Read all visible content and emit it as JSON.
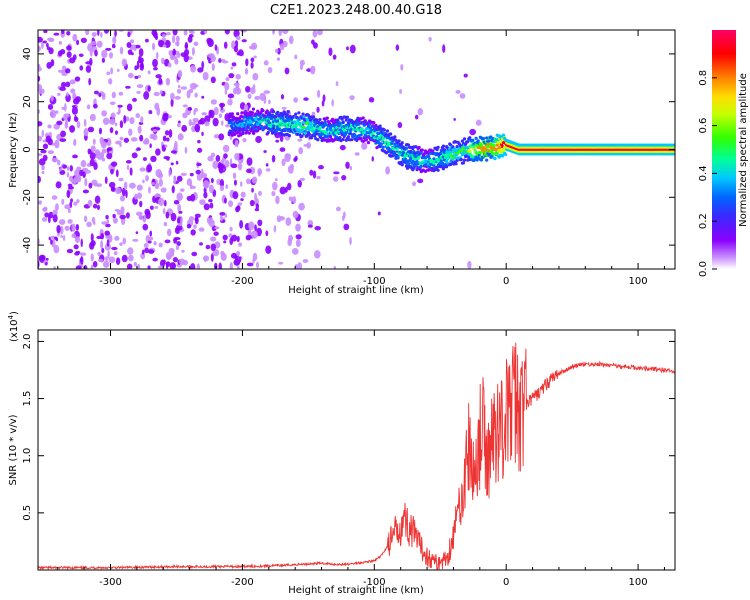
{
  "title": "C2E1.2023.248.00.40.G18",
  "chart_data": [
    {
      "type": "heatmap",
      "xlabel": "Height of straight line (km)",
      "ylabel": "Frequency (Hz)",
      "xlim": [
        -355,
        128
      ],
      "ylim": [
        -50,
        50
      ],
      "xticks": [
        "-300",
        "-200",
        "-100",
        "0",
        "100"
      ],
      "xtick_values": [
        -300,
        -200,
        -100,
        0,
        100
      ],
      "yticks": [
        "-40",
        "-20",
        "0",
        "20",
        "40"
      ],
      "ytick_values": [
        -40,
        -20,
        0,
        20,
        40
      ],
      "colorbar": {
        "label": "Normalized spectral amplitude",
        "range": [
          0,
          1
        ],
        "ticks": [
          "0.0",
          "0.2",
          "0.4",
          "0.6",
          "0.8"
        ],
        "tick_values": [
          0.0,
          0.2,
          0.4,
          0.6,
          0.8
        ],
        "colors": [
          "#ffffff",
          "#c88cff",
          "#8a00ff",
          "#3c28ff",
          "#0064ff",
          "#00c8ff",
          "#00ff96",
          "#32ff00",
          "#c8ff00",
          "#ffdc00",
          "#ff8200",
          "#ff0000",
          "#ff0064"
        ]
      },
      "ridge": {
        "x": [
          -210,
          -190,
          -170,
          -150,
          -135,
          -120,
          -105,
          -90,
          -75,
          -60,
          -50,
          -40,
          -30,
          -20,
          -10,
          0,
          10,
          50,
          128
        ],
        "y": [
          10,
          12,
          11,
          10,
          8,
          9,
          8,
          3,
          -3,
          -5,
          -4,
          -2,
          0,
          0,
          1,
          2,
          0,
          0,
          0
        ],
        "amplitude": [
          0.35,
          0.45,
          0.5,
          0.55,
          0.45,
          0.5,
          0.45,
          0.5,
          0.5,
          0.45,
          0.5,
          0.55,
          0.6,
          0.8,
          0.85,
          0.9,
          0.9,
          0.95,
          0.95
        ]
      }
    },
    {
      "type": "line",
      "xlabel": "Height of straight line (km)",
      "ylabel": "SNR (10 * v/v)",
      "yscale_note": "(x10",
      "yscale_exp": "4",
      "yscale_close": ")",
      "xlim": [
        -355,
        128
      ],
      "ylim": [
        0,
        2.1
      ],
      "xticks": [
        "-300",
        "-200",
        "-100",
        "0",
        "100"
      ],
      "xtick_values": [
        -300,
        -200,
        -100,
        0,
        100
      ],
      "yticks": [
        "0.5",
        "1.0",
        "1.5",
        "2.0"
      ],
      "ytick_values": [
        0.5,
        1.0,
        1.5,
        2.0
      ],
      "color": "#ee3333",
      "series": [
        {
          "x": [
            -355,
            -300,
            -250,
            -200,
            -170,
            -140,
            -130,
            -120,
            -100,
            -95,
            -85,
            -78,
            -72,
            -65,
            -58,
            -52,
            -45,
            -40,
            -35,
            -30,
            -28,
            -25,
            -22,
            -18,
            -15,
            -12,
            -8,
            -5,
            -2,
            0,
            3,
            5,
            8,
            10,
            12,
            15,
            20,
            25,
            30,
            35,
            40,
            45,
            50,
            60,
            70,
            80,
            90,
            100,
            110,
            120,
            128
          ],
          "y": [
            0.02,
            0.02,
            0.03,
            0.03,
            0.04,
            0.06,
            0.05,
            0.05,
            0.08,
            0.12,
            0.3,
            0.45,
            0.35,
            0.2,
            0.1,
            0.06,
            0.1,
            0.3,
            0.6,
            0.9,
            1.1,
            0.8,
            1.0,
            1.3,
            0.9,
            1.1,
            1.2,
            1.3,
            1.25,
            1.35,
            1.4,
            1.45,
            1.5,
            1.35,
            1.4,
            1.45,
            1.5,
            1.55,
            1.62,
            1.68,
            1.72,
            1.75,
            1.78,
            1.8,
            1.8,
            1.79,
            1.78,
            1.77,
            1.76,
            1.75,
            1.73
          ]
        }
      ]
    }
  ]
}
